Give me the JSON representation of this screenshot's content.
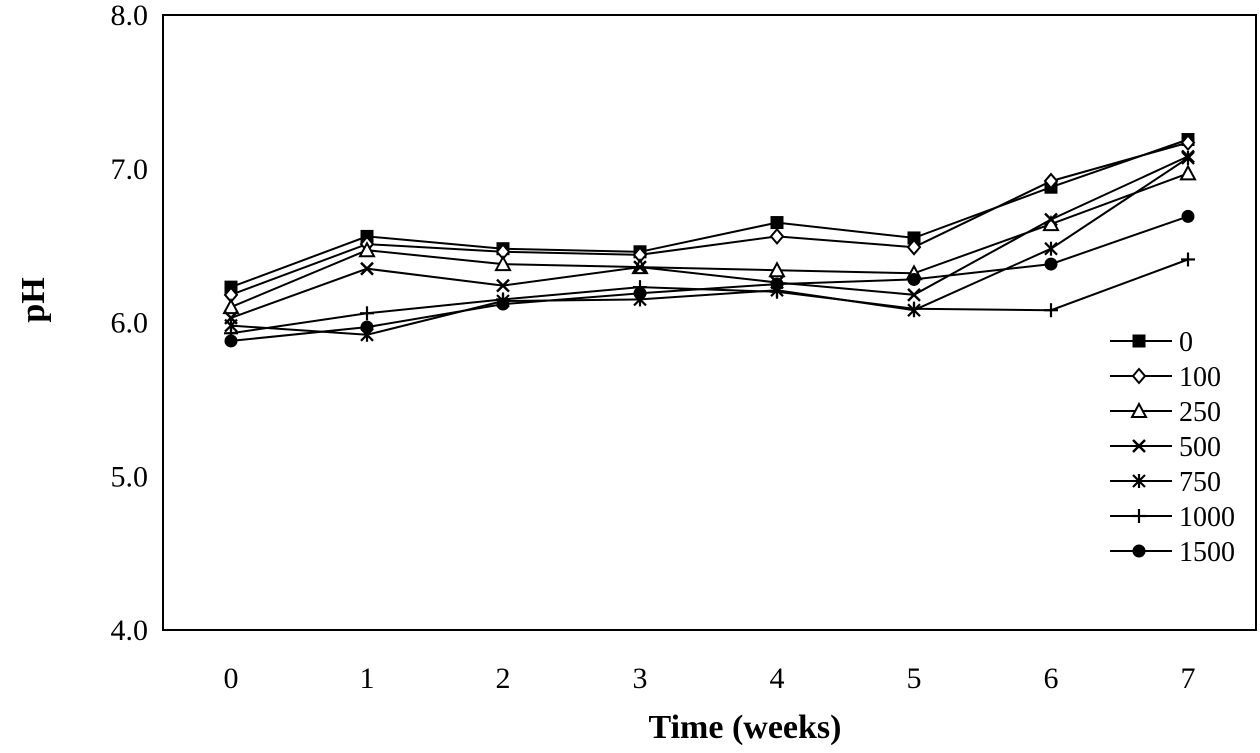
{
  "chart_data": {
    "type": "line",
    "xlabel": "Time (weeks)",
    "ylabel": "pH",
    "x": [
      0,
      1,
      2,
      3,
      4,
      5,
      6,
      7
    ],
    "xticks": [
      "0",
      "1",
      "2",
      "3",
      "4",
      "5",
      "6",
      "7"
    ],
    "ylim": [
      4.0,
      8.0
    ],
    "yticks": [
      "4.0",
      "5.0",
      "6.0",
      "7.0",
      "8.0"
    ],
    "grid": false,
    "legend_position": "bottom-right",
    "series": [
      {
        "name": "0",
        "marker": "filled-square",
        "values": [
          6.23,
          6.56,
          6.48,
          6.46,
          6.65,
          6.55,
          6.88,
          7.19
        ]
      },
      {
        "name": "100",
        "marker": "open-diamond",
        "values": [
          6.18,
          6.51,
          6.46,
          6.44,
          6.56,
          6.49,
          6.92,
          7.17
        ]
      },
      {
        "name": "250",
        "marker": "open-triangle",
        "values": [
          6.1,
          6.47,
          6.38,
          6.36,
          6.34,
          6.32,
          6.64,
          6.97
        ]
      },
      {
        "name": "500",
        "marker": "x",
        "values": [
          6.03,
          6.35,
          6.24,
          6.36,
          6.26,
          6.18,
          6.67,
          7.08
        ]
      },
      {
        "name": "750",
        "marker": "asterisk",
        "values": [
          5.98,
          5.92,
          6.14,
          6.15,
          6.21,
          6.08,
          6.48,
          7.07
        ]
      },
      {
        "name": "1000",
        "marker": "plus",
        "values": [
          5.93,
          6.06,
          6.15,
          6.23,
          6.2,
          6.09,
          6.08,
          6.41
        ]
      },
      {
        "name": "1500",
        "marker": "filled-circle",
        "values": [
          5.88,
          5.97,
          6.12,
          6.19,
          6.25,
          6.28,
          6.38,
          6.69
        ]
      }
    ]
  }
}
